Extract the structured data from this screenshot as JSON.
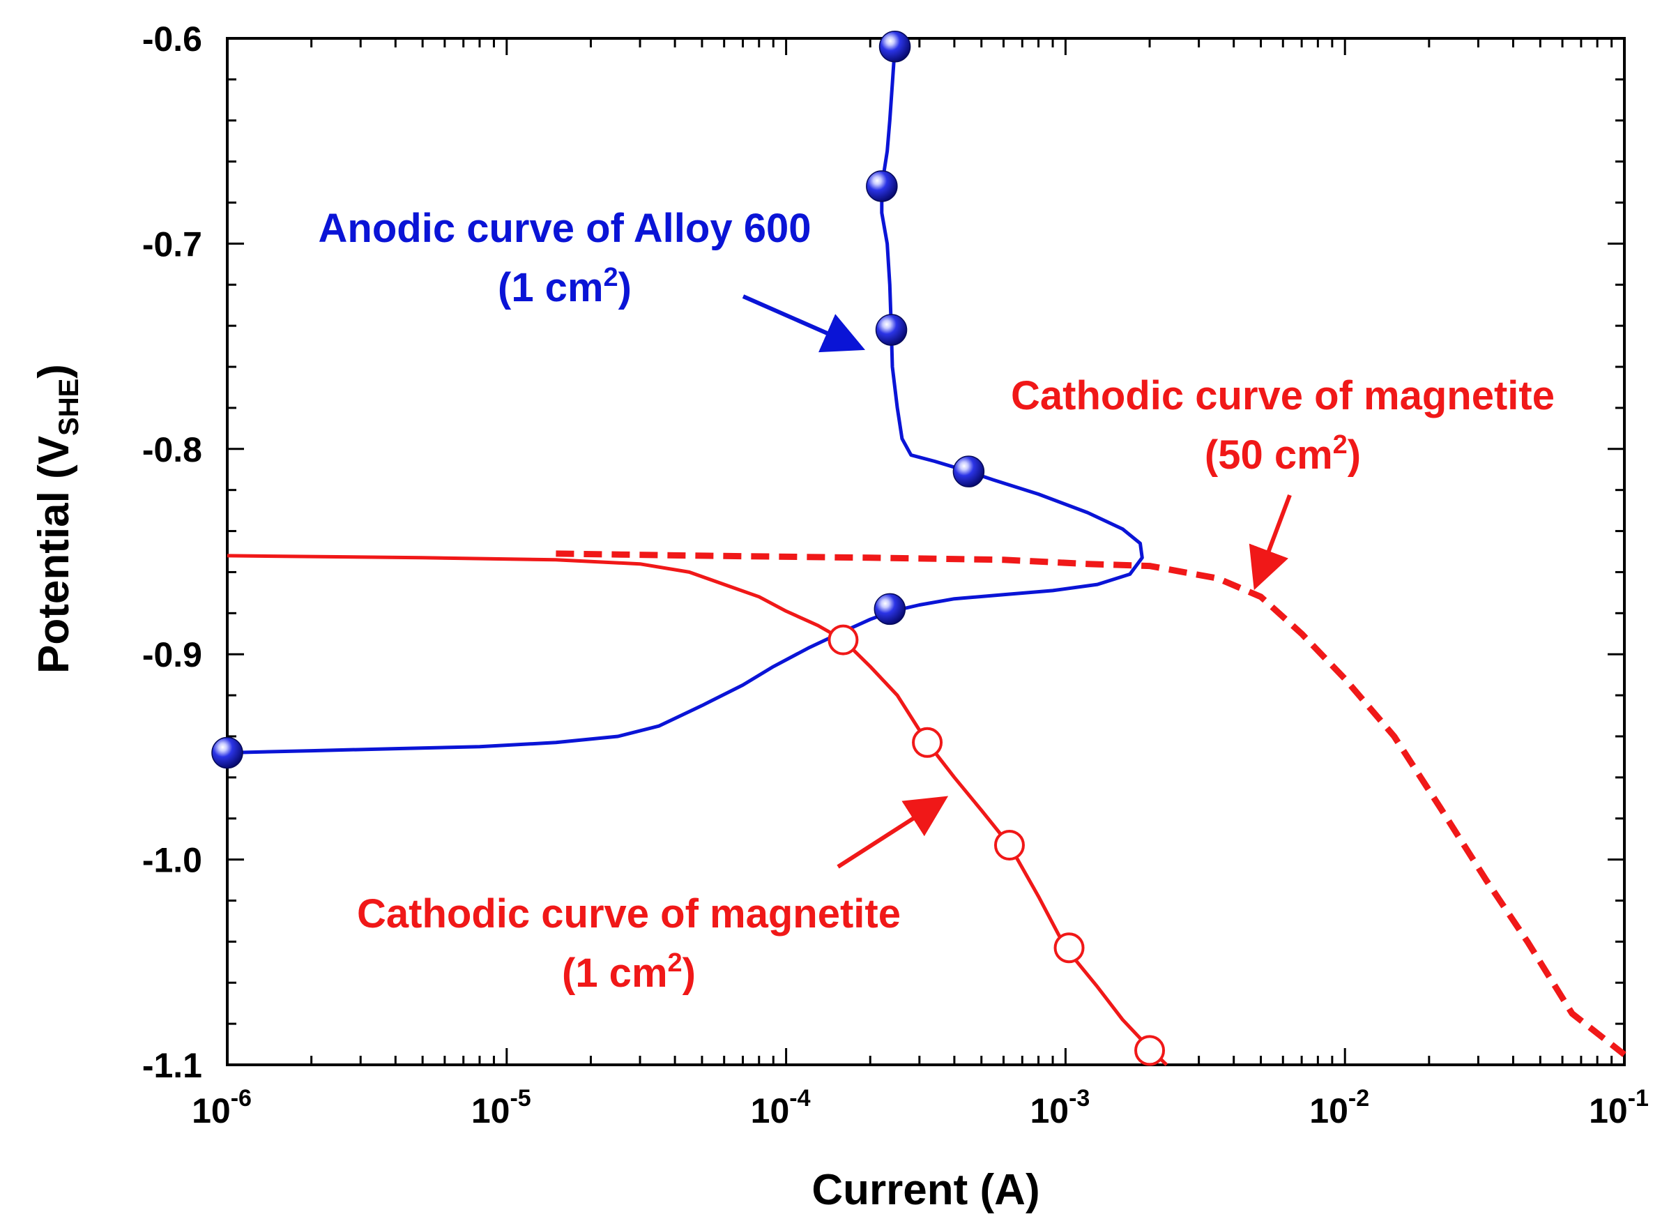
{
  "chart_data": {
    "type": "line",
    "title": "",
    "xlabel": "Current (A)",
    "ylabel_main": "Potential (V",
    "ylabel_sub": "SHE",
    "ylabel_close": ")",
    "xscale": "log",
    "xlim": [
      1e-06,
      0.1
    ],
    "ylim": [
      -1.1,
      -0.6
    ],
    "x_ticks": [
      {
        "value": 1e-06,
        "base": "10",
        "exp": "-6"
      },
      {
        "value": 1e-05,
        "base": "10",
        "exp": "-5"
      },
      {
        "value": 0.0001,
        "base": "10",
        "exp": "-4"
      },
      {
        "value": 0.001,
        "base": "10",
        "exp": "-3"
      },
      {
        "value": 0.01,
        "base": "10",
        "exp": "-2"
      },
      {
        "value": 0.1,
        "base": "10",
        "exp": "-1"
      }
    ],
    "y_ticks": [
      {
        "value": -0.6,
        "label": "-0.6"
      },
      {
        "value": -0.7,
        "label": "-0.7"
      },
      {
        "value": -0.8,
        "label": "-0.8"
      },
      {
        "value": -0.9,
        "label": "-0.9"
      },
      {
        "value": -1.0,
        "label": "-1.0"
      },
      {
        "value": -1.1,
        "label": "-1.1"
      }
    ],
    "grid": false,
    "series": [
      {
        "name": "Anodic curve of Alloy 600 (1 cm2)",
        "color": "#0a14d6",
        "style": "solid",
        "marker": "filled-sphere",
        "points": [
          [
            1e-06,
            -0.948
          ],
          [
            2e-06,
            -0.947
          ],
          [
            4e-06,
            -0.946
          ],
          [
            8e-06,
            -0.945
          ],
          [
            1.5e-05,
            -0.943
          ],
          [
            2.5e-05,
            -0.94
          ],
          [
            3.5e-05,
            -0.935
          ],
          [
            5e-05,
            -0.925
          ],
          [
            7e-05,
            -0.915
          ],
          [
            9e-05,
            -0.906
          ],
          [
            0.00012,
            -0.897
          ],
          [
            0.00016,
            -0.889
          ],
          [
            0.0002,
            -0.883
          ],
          [
            0.00024,
            -0.879
          ],
          [
            0.0003,
            -0.876
          ],
          [
            0.0004,
            -0.873
          ],
          [
            0.0006,
            -0.871
          ],
          [
            0.0009,
            -0.869
          ],
          [
            0.0013,
            -0.866
          ],
          [
            0.0017,
            -0.861
          ],
          [
            0.00188,
            -0.853
          ],
          [
            0.00185,
            -0.846
          ],
          [
            0.0016,
            -0.839
          ],
          [
            0.0012,
            -0.831
          ],
          [
            0.0008,
            -0.822
          ],
          [
            0.00055,
            -0.815
          ],
          [
            0.00045,
            -0.811
          ],
          [
            0.00034,
            -0.806
          ],
          [
            0.00028,
            -0.803
          ],
          [
            0.00026,
            -0.795
          ],
          [
            0.00025,
            -0.78
          ],
          [
            0.00024,
            -0.76
          ],
          [
            0.000238,
            -0.742
          ],
          [
            0.000235,
            -0.72
          ],
          [
            0.00023,
            -0.7
          ],
          [
            0.00022,
            -0.685
          ],
          [
            0.00022,
            -0.672
          ],
          [
            0.00023,
            -0.655
          ],
          [
            0.000235,
            -0.64
          ],
          [
            0.00024,
            -0.622
          ],
          [
            0.000245,
            -0.604
          ]
        ],
        "markers": [
          [
            0.000245,
            -0.604
          ],
          [
            0.00022,
            -0.672
          ],
          [
            0.000238,
            -0.742
          ],
          [
            0.00045,
            -0.811
          ],
          [
            0.000235,
            -0.878
          ],
          [
            1e-06,
            -0.948
          ]
        ]
      },
      {
        "name": "Cathodic curve of magnetite (1 cm2)",
        "color": "#f01818",
        "style": "solid",
        "marker": "open-circle",
        "points": [
          [
            1e-06,
            -0.852
          ],
          [
            5e-06,
            -0.853
          ],
          [
            1.5e-05,
            -0.854
          ],
          [
            3e-05,
            -0.856
          ],
          [
            4.5e-05,
            -0.86
          ],
          [
            6e-05,
            -0.866
          ],
          [
            8e-05,
            -0.872
          ],
          [
            0.0001,
            -0.879
          ],
          [
            0.00013,
            -0.886
          ],
          [
            0.00016,
            -0.893
          ],
          [
            0.0002,
            -0.906
          ],
          [
            0.00025,
            -0.92
          ],
          [
            0.00032,
            -0.943
          ],
          [
            0.0004,
            -0.96
          ],
          [
            0.0005,
            -0.976
          ],
          [
            0.00063,
            -0.993
          ],
          [
            0.0008,
            -1.018
          ],
          [
            0.001,
            -1.043
          ],
          [
            0.0013,
            -1.062
          ],
          [
            0.0016,
            -1.078
          ],
          [
            0.002,
            -1.092
          ],
          [
            0.0023,
            -1.1
          ]
        ],
        "markers": [
          [
            0.00016,
            -0.893
          ],
          [
            0.00032,
            -0.943
          ],
          [
            0.00063,
            -0.993
          ],
          [
            0.00103,
            -1.043
          ],
          [
            0.002,
            -1.093
          ]
        ]
      },
      {
        "name": "Cathodic curve of magnetite (50 cm2)",
        "color": "#f01818",
        "style": "dashed",
        "marker": "none",
        "points": [
          [
            1.5e-05,
            -0.851
          ],
          [
            5e-05,
            -0.852
          ],
          [
            0.0002,
            -0.853
          ],
          [
            0.0006,
            -0.854
          ],
          [
            0.0012,
            -0.856
          ],
          [
            0.002,
            -0.857
          ],
          [
            0.0035,
            -0.863
          ],
          [
            0.005,
            -0.872
          ],
          [
            0.007,
            -0.89
          ],
          [
            0.01,
            -0.912
          ],
          [
            0.015,
            -0.94
          ],
          [
            0.022,
            -0.975
          ],
          [
            0.032,
            -1.01
          ],
          [
            0.045,
            -1.04
          ],
          [
            0.065,
            -1.075
          ],
          [
            0.1,
            -1.095
          ]
        ],
        "markers": []
      }
    ],
    "annotations": [
      {
        "line1": "Anodic curve of Alloy 600",
        "line2_pre": "(1 cm",
        "line2_sup": "2",
        "line2_post": ")",
        "color": "#0a14d6"
      },
      {
        "line1": "Cathodic curve of magnetite",
        "line2_pre": "(50 cm",
        "line2_sup": "2",
        "line2_post": ")",
        "color": "#f01818"
      },
      {
        "line1": "Cathodic curve of magnetite",
        "line2_pre": "(1 cm",
        "line2_sup": "2",
        "line2_post": ")",
        "color": "#f01818"
      }
    ]
  }
}
